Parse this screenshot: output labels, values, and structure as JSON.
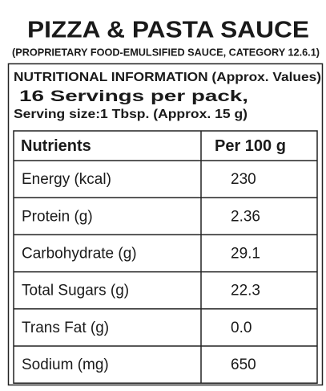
{
  "title": "PIZZA & PASTA SAUCE",
  "subtitle": "(PROPRIETARY FOOD-EMULSIFIED SAUCE, CATEGORY 12.6.1)",
  "info": {
    "heading": "NUTRITIONAL INFORMATION (Approx. Values)",
    "servings": "16 Servings per pack,",
    "serving_size": "Serving size:1 Tbsp. (Approx. 15 g)"
  },
  "table": {
    "header": [
      "Nutrients",
      "Per 100 g"
    ],
    "rows": [
      [
        "Energy (kcal)",
        "230"
      ],
      [
        "Protein (g)",
        "2.36"
      ],
      [
        "Carbohydrate (g)",
        "29.1"
      ],
      [
        "Total Sugars (g)",
        "22.3"
      ],
      [
        "Trans Fat (g)",
        "0.0"
      ],
      [
        "Sodium (mg)",
        "650"
      ]
    ]
  }
}
